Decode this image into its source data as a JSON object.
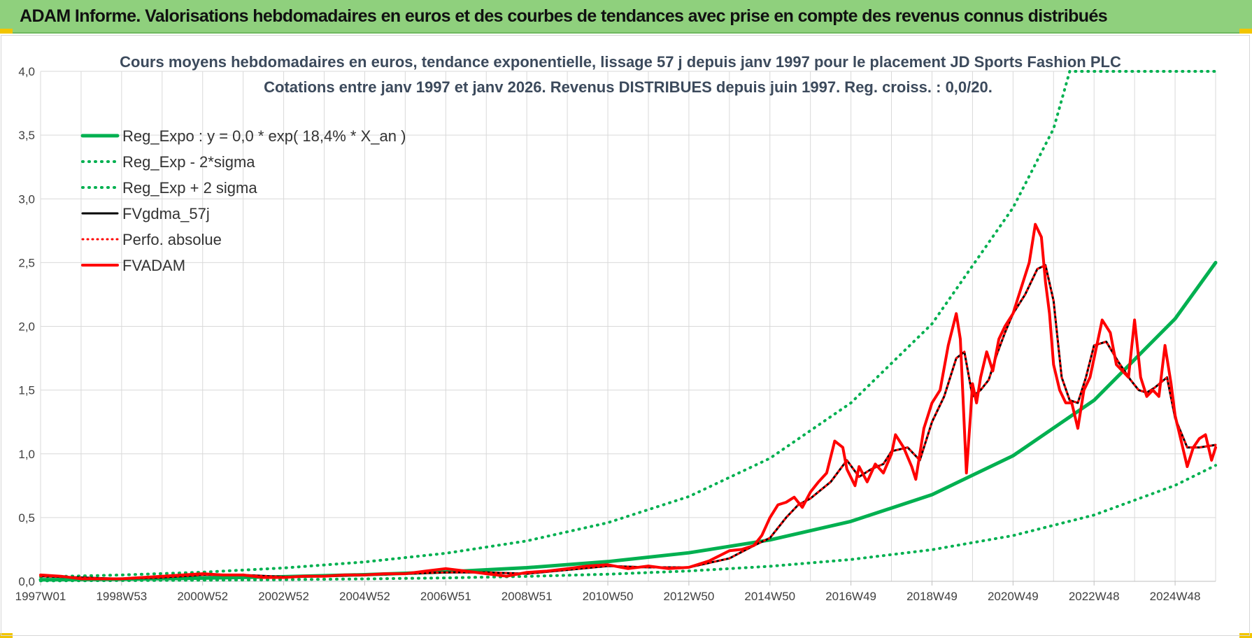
{
  "banner": {
    "title": "ADAM Informe. Valorisations hebdomadaires en euros et des courbes de tendances avec prise en compte des revenus connus distribués"
  },
  "colors": {
    "regression": "#00b050",
    "fv_gdma": "#000000",
    "fv_adam": "#ff0000",
    "perf": "#ff0000",
    "banner": "#8fd07d",
    "grid": "#d9d9d9"
  },
  "chart_data": {
    "type": "line",
    "title": "Cours moyens hebdomadaires en euros, tendance exponentielle, lissage 57 j depuis janv 1997 pour le placement JD Sports Fashion PLC",
    "subtitle": "Cotations entre janv 1997 et janv 2026. Revenus DISTRIBUES depuis juin 1997. Reg. croiss. : 0,0/20.",
    "xlabel": "",
    "ylabel": "",
    "x_unit": "year",
    "xlim": [
      1997.0,
      2026.0
    ],
    "ylim": [
      0,
      4.0
    ],
    "y_ticks": [
      "0,0",
      "0,5",
      "1,0",
      "1,5",
      "2,0",
      "2,5",
      "3,0",
      "3,5",
      "4,0"
    ],
    "x_ticks": [
      {
        "x": 1997.0,
        "label": "1997W01"
      },
      {
        "x": 1999.0,
        "label": "1998W53"
      },
      {
        "x": 2001.0,
        "label": "2000W52"
      },
      {
        "x": 2003.0,
        "label": "2002W52"
      },
      {
        "x": 2005.0,
        "label": "2004W52"
      },
      {
        "x": 2007.0,
        "label": "2006W51"
      },
      {
        "x": 2009.0,
        "label": "2008W51"
      },
      {
        "x": 2011.0,
        "label": "2010W50"
      },
      {
        "x": 2013.0,
        "label": "2012W50"
      },
      {
        "x": 2015.0,
        "label": "2014W50"
      },
      {
        "x": 2017.0,
        "label": "2016W49"
      },
      {
        "x": 2019.0,
        "label": "2018W49"
      },
      {
        "x": 2021.0,
        "label": "2020W49"
      },
      {
        "x": 2023.0,
        "label": "2022W48"
      },
      {
        "x": 2025.0,
        "label": "2024W48"
      }
    ],
    "legend_position": "top-left",
    "series": [
      {
        "name": "Reg_Expo : y = 0,0 * exp( 18,4% *  X_an )",
        "style": "regression",
        "x": [
          1997.0,
          1999.0,
          2001.0,
          2003.0,
          2005.0,
          2007.0,
          2009.0,
          2011.0,
          2013.0,
          2015.0,
          2017.0,
          2019.0,
          2021.0,
          2023.0,
          2025.0,
          2026.0
        ],
        "y": [
          0.012,
          0.017,
          0.025,
          0.036,
          0.052,
          0.074,
          0.107,
          0.155,
          0.224,
          0.325,
          0.47,
          0.68,
          0.985,
          1.42,
          2.06,
          2.5
        ]
      },
      {
        "name": "Reg_Exp - 2*sigma",
        "style": "dotted",
        "x": [
          1997.0,
          1999.0,
          2001.0,
          2003.0,
          2005.0,
          2007.0,
          2009.0,
          2011.0,
          2013.0,
          2015.0,
          2017.0,
          2019.0,
          2021.0,
          2023.0,
          2025.0,
          2026.0
        ],
        "y": [
          0.004,
          0.006,
          0.009,
          0.013,
          0.019,
          0.027,
          0.039,
          0.056,
          0.081,
          0.118,
          0.171,
          0.248,
          0.359,
          0.52,
          0.753,
          0.91
        ]
      },
      {
        "name": "Reg_Exp + 2 sigma",
        "style": "dotted",
        "x": [
          1997.0,
          1999.0,
          2001.0,
          2003.0,
          2005.0,
          2007.0,
          2009.0,
          2011.0,
          2013.0,
          2015.0,
          2017.0,
          2019.0,
          2021.0,
          2022.0,
          2022.4,
          2026.0
        ],
        "y": [
          0.035,
          0.05,
          0.072,
          0.105,
          0.152,
          0.22,
          0.317,
          0.46,
          0.665,
          0.965,
          1.4,
          2.02,
          2.93,
          3.55,
          4.0,
          4.0
        ]
      },
      {
        "name": "FVgdma_57j",
        "style": "black",
        "x": [
          1997.0,
          1998.0,
          1999.0,
          2000.0,
          2001.0,
          2002.0,
          2003.0,
          2004.0,
          2005.0,
          2006.0,
          2007.0,
          2008.0,
          2009.0,
          2010.0,
          2011.0,
          2012.0,
          2013.0,
          2014.0,
          2014.6,
          2015.0,
          2015.4,
          2015.7,
          2016.0,
          2016.5,
          2016.9,
          2017.2,
          2017.5,
          2017.8,
          2018.0,
          2018.4,
          2018.7,
          2019.0,
          2019.3,
          2019.6,
          2019.8,
          2020.0,
          2020.2,
          2020.4,
          2020.6,
          2020.8,
          2021.0,
          2021.3,
          2021.6,
          2021.8,
          2022.0,
          2022.2,
          2022.4,
          2022.6,
          2022.8,
          2023.0,
          2023.3,
          2023.6,
          2023.9,
          2024.1,
          2024.3,
          2024.5,
          2024.8,
          2025.0,
          2025.3,
          2025.6,
          2026.0
        ],
        "y": [
          0.04,
          0.03,
          0.02,
          0.03,
          0.05,
          0.05,
          0.035,
          0.04,
          0.05,
          0.06,
          0.07,
          0.07,
          0.06,
          0.09,
          0.12,
          0.11,
          0.11,
          0.18,
          0.28,
          0.34,
          0.5,
          0.6,
          0.65,
          0.78,
          0.95,
          0.82,
          0.88,
          0.92,
          1.02,
          1.05,
          0.95,
          1.25,
          1.45,
          1.75,
          1.8,
          1.45,
          1.5,
          1.58,
          1.78,
          1.95,
          2.1,
          2.25,
          2.45,
          2.48,
          2.2,
          1.6,
          1.42,
          1.4,
          1.6,
          1.85,
          1.88,
          1.72,
          1.58,
          1.5,
          1.48,
          1.52,
          1.6,
          1.28,
          1.05,
          1.05,
          1.07
        ]
      },
      {
        "name": "Perfo. absolue",
        "style": "dotted-red",
        "x": [
          1997.0,
          1998.0,
          1999.0,
          2000.0,
          2001.0,
          2002.0,
          2003.0,
          2004.0,
          2005.0,
          2006.0,
          2007.0,
          2008.0,
          2009.0,
          2010.0,
          2011.0,
          2012.0,
          2013.0,
          2014.0,
          2014.6,
          2015.0,
          2015.4,
          2015.7,
          2016.0,
          2016.5,
          2016.9,
          2017.2,
          2017.5,
          2017.8,
          2018.0,
          2018.4,
          2018.7,
          2019.0,
          2019.3,
          2019.6,
          2019.8,
          2020.0,
          2020.2,
          2020.4,
          2020.6,
          2020.8,
          2021.0,
          2021.3,
          2021.6,
          2021.8,
          2022.0,
          2022.2,
          2022.4,
          2022.6,
          2022.8,
          2023.0,
          2023.3,
          2023.6,
          2023.9,
          2024.1,
          2024.3,
          2024.5,
          2024.8,
          2025.0,
          2025.3,
          2025.6,
          2026.0
        ],
        "y": [
          0.04,
          0.03,
          0.02,
          0.03,
          0.05,
          0.05,
          0.035,
          0.04,
          0.05,
          0.06,
          0.07,
          0.07,
          0.06,
          0.09,
          0.12,
          0.11,
          0.11,
          0.18,
          0.28,
          0.34,
          0.5,
          0.6,
          0.65,
          0.78,
          0.95,
          0.82,
          0.88,
          0.92,
          1.02,
          1.05,
          0.95,
          1.25,
          1.45,
          1.75,
          1.8,
          1.45,
          1.5,
          1.58,
          1.78,
          1.95,
          2.1,
          2.25,
          2.45,
          2.48,
          2.2,
          1.6,
          1.42,
          1.4,
          1.6,
          1.85,
          1.88,
          1.72,
          1.58,
          1.5,
          1.48,
          1.52,
          1.6,
          1.28,
          1.05,
          1.05,
          1.07
        ]
      },
      {
        "name": "FVADAM",
        "style": "red",
        "x": [
          1997.0,
          1997.5,
          1998.0,
          1998.5,
          1999.0,
          1999.5,
          2000.0,
          2000.5,
          2001.0,
          2001.5,
          2002.0,
          2002.5,
          2003.0,
          2003.5,
          2004.0,
          2004.5,
          2005.0,
          2005.5,
          2006.0,
          2006.5,
          2007.0,
          2007.5,
          2008.0,
          2008.5,
          2009.0,
          2009.5,
          2010.0,
          2010.5,
          2011.0,
          2011.5,
          2012.0,
          2012.5,
          2013.0,
          2013.5,
          2014.0,
          2014.3,
          2014.6,
          2014.8,
          2015.0,
          2015.2,
          2015.4,
          2015.6,
          2015.8,
          2016.0,
          2016.2,
          2016.4,
          2016.6,
          2016.8,
          2016.9,
          2017.1,
          2017.2,
          2017.4,
          2017.6,
          2017.8,
          2018.0,
          2018.1,
          2018.3,
          2018.5,
          2018.6,
          2018.8,
          2019.0,
          2019.2,
          2019.4,
          2019.6,
          2019.7,
          2019.85,
          2019.95,
          2020.0,
          2020.1,
          2020.2,
          2020.35,
          2020.5,
          2020.65,
          2020.8,
          2021.0,
          2021.2,
          2021.4,
          2021.55,
          2021.7,
          2021.8,
          2021.9,
          2022.0,
          2022.15,
          2022.3,
          2022.45,
          2022.6,
          2022.75,
          2022.9,
          2023.0,
          2023.2,
          2023.4,
          2023.55,
          2023.7,
          2023.85,
          2024.0,
          2024.15,
          2024.3,
          2024.45,
          2024.6,
          2024.75,
          2024.9,
          2025.0,
          2025.15,
          2025.3,
          2025.45,
          2025.6,
          2025.75,
          2025.9,
          2026.0
        ],
        "y": [
          0.05,
          0.04,
          0.02,
          0.02,
          0.02,
          0.03,
          0.04,
          0.05,
          0.06,
          0.05,
          0.05,
          0.03,
          0.03,
          0.04,
          0.04,
          0.05,
          0.05,
          0.06,
          0.06,
          0.08,
          0.1,
          0.08,
          0.06,
          0.04,
          0.07,
          0.08,
          0.1,
          0.12,
          0.13,
          0.1,
          0.12,
          0.1,
          0.11,
          0.16,
          0.24,
          0.25,
          0.28,
          0.36,
          0.5,
          0.6,
          0.62,
          0.66,
          0.58,
          0.7,
          0.78,
          0.85,
          1.1,
          1.05,
          0.88,
          0.75,
          0.9,
          0.78,
          0.92,
          0.85,
          1.0,
          1.15,
          1.05,
          0.9,
          0.8,
          1.2,
          1.4,
          1.5,
          1.85,
          2.1,
          1.9,
          0.85,
          1.3,
          1.55,
          1.4,
          1.6,
          1.8,
          1.65,
          1.9,
          2.0,
          2.1,
          2.3,
          2.5,
          2.8,
          2.7,
          2.35,
          2.1,
          1.7,
          1.5,
          1.4,
          1.4,
          1.2,
          1.5,
          1.6,
          1.75,
          2.05,
          1.95,
          1.7,
          1.65,
          1.6,
          2.05,
          1.6,
          1.45,
          1.5,
          1.45,
          1.85,
          1.55,
          1.3,
          1.1,
          0.9,
          1.05,
          1.12,
          1.15,
          0.95,
          1.05
        ]
      }
    ]
  }
}
